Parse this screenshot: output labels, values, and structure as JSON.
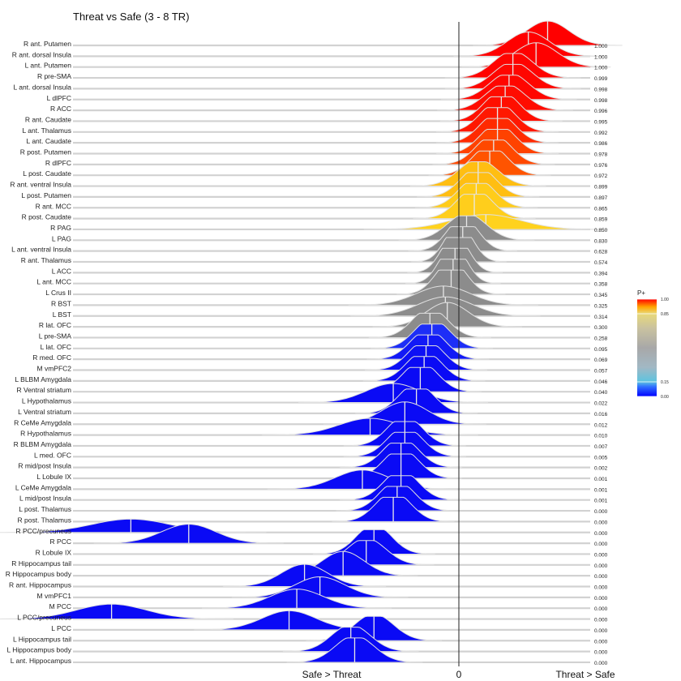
{
  "chart_data": {
    "type": "ridgeline",
    "title": "Threat vs Safe (3 - 8 TR)",
    "x_axis": {
      "left_label": "Safe > Threat",
      "zero_label": "0",
      "right_label": "Threat > Safe",
      "range": [
        -1.0,
        0.45
      ]
    },
    "legend": {
      "title": "P+",
      "ticks": [
        "1.00",
        "0.85",
        "0.15",
        "0.00"
      ],
      "tick_values": [
        1.0,
        0.85,
        0.15,
        0.0
      ],
      "placement": "right"
    },
    "colors": {
      "low": "#0a0af5",
      "mid_low": "#5fa8ff",
      "neutral": "#8c8c8c",
      "mid_high": "#ffd21e",
      "high": "#ff0000"
    },
    "regions": [
      {
        "name": "R ant. Putamen",
        "p": "1.000",
        "mean": 0.23,
        "sd": 0.055
      },
      {
        "name": "R ant. dorsal Insula",
        "p": "1.000",
        "mean": 0.18,
        "sd": 0.055
      },
      {
        "name": "L ant. Putamen",
        "p": "1.000",
        "mean": 0.2,
        "sd": 0.055
      },
      {
        "name": "R pre-SMA",
        "p": "0.999",
        "mean": 0.14,
        "sd": 0.05
      },
      {
        "name": "L ant. dorsal Insula",
        "p": "0.998",
        "mean": 0.14,
        "sd": 0.05
      },
      {
        "name": "L dlPFC",
        "p": "0.998",
        "mean": 0.13,
        "sd": 0.05
      },
      {
        "name": "R ACC",
        "p": "0.996",
        "mean": 0.12,
        "sd": 0.05
      },
      {
        "name": "R ant. Caudate",
        "p": "0.995",
        "mean": 0.11,
        "sd": 0.045
      },
      {
        "name": "L ant. Thalamus",
        "p": "0.992",
        "mean": 0.1,
        "sd": 0.045
      },
      {
        "name": "L ant. Caudate",
        "p": "0.986",
        "mean": 0.1,
        "sd": 0.045
      },
      {
        "name": "R post. Putamen",
        "p": "0.978",
        "mean": 0.1,
        "sd": 0.045
      },
      {
        "name": "R dlPFC",
        "p": "0.976",
        "mean": 0.09,
        "sd": 0.045
      },
      {
        "name": "L post. Caudate",
        "p": "0.972",
        "mean": 0.08,
        "sd": 0.045
      },
      {
        "name": "R ant. ventral Insula",
        "p": "0.899",
        "mean": 0.05,
        "sd": 0.05
      },
      {
        "name": "L post. Putamen",
        "p": "0.897",
        "mean": 0.05,
        "sd": 0.045
      },
      {
        "name": "R ant. MCC",
        "p": "0.865",
        "mean": 0.045,
        "sd": 0.045
      },
      {
        "name": "R post. Caudate",
        "p": "0.859",
        "mean": 0.04,
        "sd": 0.045
      },
      {
        "name": "R PAG",
        "p": "0.850",
        "mean": 0.07,
        "sd": 0.09
      },
      {
        "name": "L PAG",
        "p": "0.830",
        "mean": 0.02,
        "sd": 0.05
      },
      {
        "name": "L ant. ventral Insula",
        "p": "0.628",
        "mean": 0.01,
        "sd": 0.04
      },
      {
        "name": "R ant. Thalamus",
        "p": "0.574",
        "mean": 0.0,
        "sd": 0.035
      },
      {
        "name": "L ACC",
        "p": "0.394",
        "mean": -0.01,
        "sd": 0.035
      },
      {
        "name": "L ant. MCC",
        "p": "0.358",
        "mean": -0.015,
        "sd": 0.035
      },
      {
        "name": "L Crus II",
        "p": "0.345",
        "mean": -0.02,
        "sd": 0.04
      },
      {
        "name": "R BST",
        "p": "0.325",
        "mean": -0.04,
        "sd": 0.07
      },
      {
        "name": "L BST",
        "p": "0.314",
        "mean": -0.035,
        "sd": 0.07
      },
      {
        "name": "R lat. OFC",
        "p": "0.300",
        "mean": -0.03,
        "sd": 0.055
      },
      {
        "name": "L pre-SMA",
        "p": "0.258",
        "mean": -0.075,
        "sd": 0.045
      },
      {
        "name": "L lat. OFC",
        "p": "0.095",
        "mean": -0.07,
        "sd": 0.045
      },
      {
        "name": "R med. OFC",
        "p": "0.069",
        "mean": -0.08,
        "sd": 0.045
      },
      {
        "name": "M vmPFC2",
        "p": "0.057",
        "mean": -0.085,
        "sd": 0.045
      },
      {
        "name": "L BLBM Amygdala",
        "p": "0.046",
        "mean": -0.09,
        "sd": 0.045
      },
      {
        "name": "R Ventral striatum",
        "p": "0.040",
        "mean": -0.1,
        "sd": 0.045
      },
      {
        "name": "L Hypothalamus",
        "p": "0.022",
        "mean": -0.17,
        "sd": 0.07
      },
      {
        "name": "L Ventral striatum",
        "p": "0.016",
        "mean": -0.11,
        "sd": 0.045
      },
      {
        "name": "R CeMe Amygdala",
        "p": "0.012",
        "mean": -0.14,
        "sd": 0.06
      },
      {
        "name": "R Hypothalamus",
        "p": "0.010",
        "mean": -0.23,
        "sd": 0.08
      },
      {
        "name": "R BLBM Amygdala",
        "p": "0.007",
        "mean": -0.14,
        "sd": 0.045
      },
      {
        "name": "L med. OFC",
        "p": "0.005",
        "mean": -0.14,
        "sd": 0.045
      },
      {
        "name": "R mid/post Insula",
        "p": "0.002",
        "mean": -0.15,
        "sd": 0.045
      },
      {
        "name": "L Lobule IX",
        "p": "0.001",
        "mean": -0.15,
        "sd": 0.045
      },
      {
        "name": "L CeMe Amygdala",
        "p": "0.001",
        "mean": -0.25,
        "sd": 0.07
      },
      {
        "name": "L mid/post Insula",
        "p": "0.001",
        "mean": -0.15,
        "sd": 0.045
      },
      {
        "name": "L post. Thalamus",
        "p": "0.000",
        "mean": -0.16,
        "sd": 0.045
      },
      {
        "name": "R post. Thalamus",
        "p": "0.000",
        "mean": -0.17,
        "sd": 0.045
      },
      {
        "name": "R PCC/precuneus",
        "p": "0.000",
        "mean": -0.85,
        "sd": 0.1
      },
      {
        "name": "R PCC",
        "p": "0.000",
        "mean": -0.7,
        "sd": 0.07
      },
      {
        "name": "R Lobule IX",
        "p": "0.000",
        "mean": -0.22,
        "sd": 0.045
      },
      {
        "name": "R Hippocampus tail",
        "p": "0.000",
        "mean": -0.24,
        "sd": 0.05
      },
      {
        "name": "R Hippocampus body",
        "p": "0.000",
        "mean": -0.3,
        "sd": 0.055
      },
      {
        "name": "R ant. Hippocampus",
        "p": "0.000",
        "mean": -0.4,
        "sd": 0.06
      },
      {
        "name": "M vmPFC1",
        "p": "0.000",
        "mean": -0.36,
        "sd": 0.065
      },
      {
        "name": "M PCC",
        "p": "0.000",
        "mean": -0.42,
        "sd": 0.07
      },
      {
        "name": "L PCC/precuneus",
        "p": "0.000",
        "mean": -0.9,
        "sd": 0.09
      },
      {
        "name": "L PCC",
        "p": "0.000",
        "mean": -0.44,
        "sd": 0.07
      },
      {
        "name": "L Hippocampus tail",
        "p": "0.000",
        "mean": -0.22,
        "sd": 0.05
      },
      {
        "name": "L Hippocampus body",
        "p": "0.000",
        "mean": -0.28,
        "sd": 0.05
      },
      {
        "name": "L ant. Hippocampus",
        "p": "0.000",
        "mean": -0.27,
        "sd": 0.05
      }
    ]
  }
}
